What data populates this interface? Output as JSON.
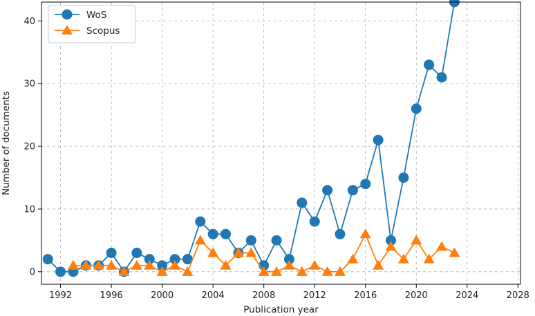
{
  "chart_data": {
    "type": "line",
    "title": "",
    "xlabel": "Publication year",
    "ylabel": "Number of documents",
    "xlim": [
      1990.5,
      2028.2
    ],
    "ylim": [
      -2,
      43
    ],
    "xticks": [
      1992,
      1996,
      2000,
      2004,
      2008,
      2012,
      2016,
      2020,
      2024,
      2028
    ],
    "yticks": [
      0,
      10,
      20,
      30,
      40
    ],
    "grid": true,
    "legend_position": "top-left",
    "series": [
      {
        "name": "WoS",
        "color": "#1f77b4",
        "marker": "circle",
        "x": [
          1991,
          1992,
          1993,
          1994,
          1995,
          1996,
          1997,
          1998,
          1999,
          2000,
          2001,
          2002,
          2003,
          2004,
          2005,
          2006,
          2007,
          2008,
          2009,
          2010,
          2011,
          2012,
          2013,
          2014,
          2015,
          2016,
          2017,
          2018,
          2019,
          2020,
          2021,
          2022,
          2023
        ],
        "values": [
          2,
          0,
          0,
          1,
          1,
          3,
          0,
          3,
          2,
          1,
          2,
          2,
          8,
          6,
          6,
          3,
          5,
          1,
          5,
          2,
          11,
          8,
          13,
          6,
          13,
          14,
          21,
          5,
          15,
          26,
          33,
          31,
          43
        ]
      },
      {
        "name": "Scopus",
        "color": "#ff7f0e",
        "marker": "triangle",
        "x": [
          1993,
          1994,
          1995,
          1996,
          1997,
          1998,
          1999,
          2000,
          2001,
          2002,
          2003,
          2004,
          2005,
          2006,
          2007,
          2008,
          2009,
          2010,
          2011,
          2012,
          2013,
          2014,
          2015,
          2016,
          2017,
          2018,
          2019,
          2020,
          2021,
          2022,
          2023
        ],
        "values": [
          1,
          1,
          1,
          1,
          0,
          1,
          1,
          0,
          1,
          0,
          5,
          3,
          1,
          3,
          3,
          0,
          0,
          1,
          0,
          1,
          0,
          0,
          2,
          6,
          1,
          4,
          2,
          5,
          2,
          4,
          3
        ]
      }
    ]
  }
}
